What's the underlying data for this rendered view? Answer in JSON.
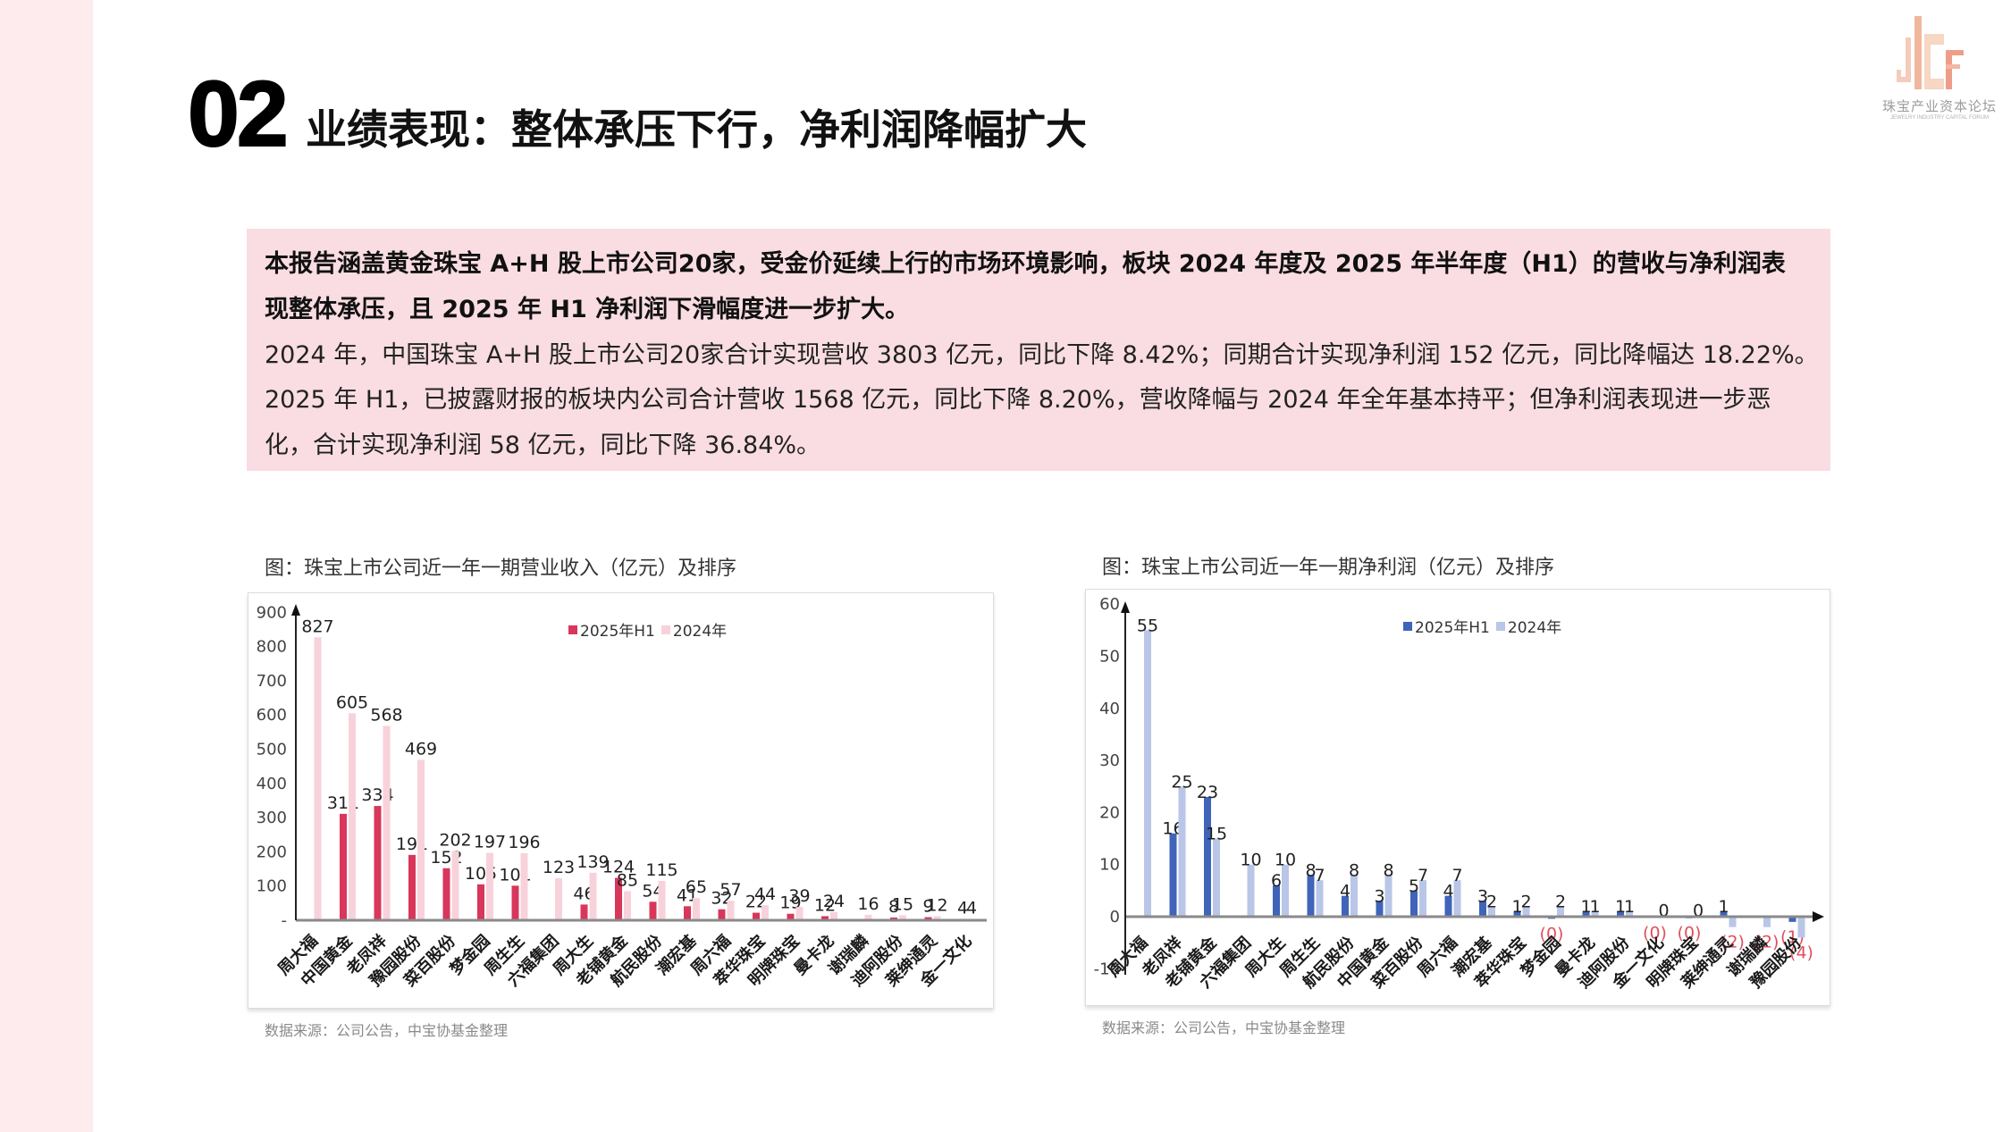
{
  "page": {
    "section_number": "02",
    "title": "业绩表现：整体承压下行，净利润降幅扩大"
  },
  "logo": {
    "name_cn": "珠宝产业资本论坛",
    "name_en": "JEWELRY INDUSTRY CAPITAL FORUM"
  },
  "summary": {
    "lines": [
      {
        "text": "本报告涵盖黄金珠宝 A+H 股上市公司20家，受金价延续上行的市场环境影响，板块 2024 年度及 2025 年半年度（H1）的营收与净利润表",
        "bold": true
      },
      {
        "text": "现整体承压，且 2025 年 H1 净利润下滑幅度进一步扩大。",
        "bold": true
      },
      {
        "text": "2024 年，中国珠宝 A+H 股上市公司20家合计实现营收 3803 亿元，同比下降 8.42%；同期合计实现净利润 152 亿元，同比降幅达 18.22%。",
        "bold": false
      },
      {
        "text": "2025 年 H1，已披露财报的板块内公司合计营收 1568 亿元，同比下降 8.20%，营收降幅与 2024 年全年基本持平；但净利润表现进一步恶",
        "bold": false
      },
      {
        "text": "化，合计实现净利润 58 亿元，同比下降 36.84%。",
        "bold": false
      }
    ]
  },
  "chart_data": [
    {
      "type": "bar",
      "title": "图：珠宝上市公司近一年一期营业收入（亿元）及排序",
      "source": "数据来源：公司公告，中宝协基金整理",
      "xlabel": "",
      "ylabel": "",
      "ylim": [
        0,
        900
      ],
      "yticks": [
        0,
        100,
        200,
        300,
        400,
        500,
        600,
        700,
        800,
        900
      ],
      "ytick_labels": [
        "-",
        "100",
        "200",
        "300",
        "400",
        "500",
        "600",
        "700",
        "800",
        "900"
      ],
      "grid": false,
      "legend": {
        "position": "top-center"
      },
      "categories": [
        "周大福",
        "中国黄金",
        "老凤祥",
        "豫园股份",
        "菜百股份",
        "梦金园",
        "周生生",
        "六福集团",
        "周大生",
        "老铺黄金",
        "航民股份",
        "潮宏基",
        "周六福",
        "萃华珠宝",
        "明牌珠宝",
        "曼卡龙",
        "谢瑞麟",
        "迪阿股份",
        "莱绅通灵",
        "金一文化"
      ],
      "series": [
        {
          "name": "2025年H1",
          "color": "#d8375b",
          "values": [
            null,
            311,
            334,
            191,
            152,
            105,
            101,
            null,
            46,
            124,
            54,
            41,
            32,
            22,
            19,
            12,
            null,
            8,
            9,
            4
          ]
        },
        {
          "name": "2024年",
          "color": "#f8d2db",
          "values": [
            827,
            605,
            568,
            469,
            202,
            197,
            196,
            123,
            139,
            85,
            115,
            65,
            57,
            44,
            39,
            24,
            16,
            15,
            12,
            4
          ]
        }
      ]
    },
    {
      "type": "bar",
      "title": "图：珠宝上市公司近一年一期净利润（亿元）及排序",
      "source": "数据来源：公司公告，中宝协基金整理",
      "xlabel": "",
      "ylabel": "",
      "ylim": [
        -10,
        60
      ],
      "yticks": [
        -10,
        0,
        10,
        20,
        30,
        40,
        50,
        60
      ],
      "ytick_labels": [
        "-10",
        "0",
        "10",
        "20",
        "30",
        "40",
        "50",
        "60"
      ],
      "grid": false,
      "legend": {
        "position": "top-center"
      },
      "negative_label_color": "#e0505e",
      "categories": [
        "周大福",
        "老凤祥",
        "老铺黄金",
        "六福集团",
        "周大生",
        "周生生",
        "航民股份",
        "中国黄金",
        "菜百股份",
        "周六福",
        "潮宏基",
        "萃华珠宝",
        "梦金园",
        "曼卡龙",
        "迪阿股份",
        "金一文化",
        "明牌珠宝",
        "莱绅通灵",
        "谢瑞麟",
        "豫园股份"
      ],
      "series": [
        {
          "name": "2025年H1",
          "color": "#3f64b9",
          "values": [
            null,
            16,
            23,
            null,
            6,
            8,
            4,
            3,
            5,
            4,
            3,
            1,
            -0.4,
            1,
            1,
            -0.2,
            -0.3,
            1,
            null,
            -1
          ],
          "labels": [
            null,
            "16",
            "23",
            null,
            "6",
            "8",
            "4",
            "3",
            "5",
            "4",
            "3",
            "1",
            "(0)",
            "1",
            "1",
            "(0)",
            "(0)",
            "1",
            null,
            "(1)"
          ]
        },
        {
          "name": "2024年",
          "color": "#b9c6e7",
          "values": [
            55,
            25,
            15,
            10,
            10,
            7,
            8,
            8,
            7,
            7,
            2,
            2,
            2,
            1,
            1,
            0.1,
            0.2,
            -2,
            -2,
            -4
          ],
          "labels": [
            "55",
            "25",
            "15",
            "10",
            "10",
            "7",
            "8",
            "8",
            "7",
            "7",
            "2",
            "2",
            "2",
            "1",
            "1",
            "0",
            "0",
            "(2)",
            "(2)",
            "(4)"
          ]
        }
      ]
    }
  ]
}
